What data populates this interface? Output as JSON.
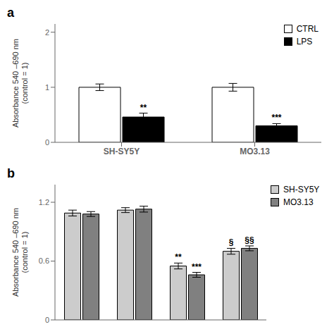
{
  "chart_data": [
    {
      "type": "bar",
      "title": "a",
      "categories": [
        "SH-SY5Y",
        "MO3.13"
      ],
      "series": [
        {
          "name": "CTRL",
          "color": "white",
          "values": [
            1.0,
            1.0
          ],
          "errors": [
            0.06,
            0.07
          ]
        },
        {
          "name": "LPS",
          "color": "black",
          "values": [
            0.46,
            0.3
          ],
          "errors": [
            0.07,
            0.04
          ],
          "annotations": [
            "**",
            "***"
          ]
        }
      ],
      "ylabel": "Absorbance 540 –690 nm\n(control = 1)",
      "ylim": [
        0,
        2.15
      ],
      "yticks": [
        0,
        1,
        2
      ],
      "grid": false,
      "legend": "upper right"
    },
    {
      "type": "bar",
      "title": "b",
      "categories": [
        null,
        null,
        null,
        null
      ],
      "series": [
        {
          "name": "SH-SY5Y",
          "color": "#cccccc",
          "values": [
            1.09,
            1.12,
            0.55,
            0.7
          ],
          "errors": [
            0.03,
            0.025,
            0.03,
            0.03
          ],
          "annotations": [
            null,
            null,
            "**",
            "§"
          ]
        },
        {
          "name": "MO3.13",
          "color": "#808080",
          "values": [
            1.08,
            1.13,
            0.46,
            0.73
          ],
          "errors": [
            0.025,
            0.03,
            0.025,
            0.025
          ],
          "annotations": [
            null,
            null,
            "***",
            "§§"
          ]
        }
      ],
      "ylabel": "Absorbance 540 –690 nm\n(control = 1)",
      "ylim": [
        0,
        1.38
      ],
      "yticks": [
        0,
        0.6,
        1.2
      ],
      "grid": false,
      "legend": "right",
      "tick_labels": "y"
    }
  ]
}
